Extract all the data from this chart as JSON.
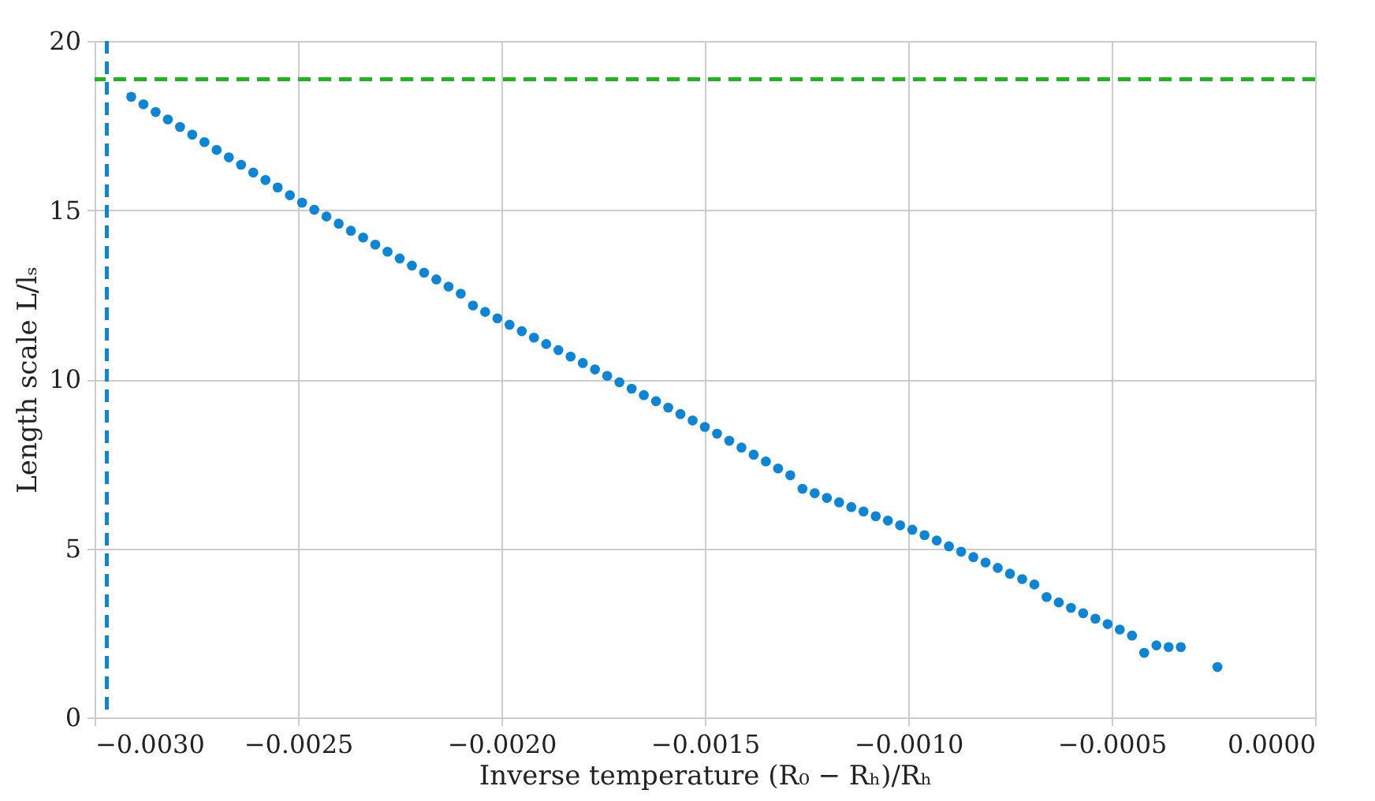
{
  "chart_data": {
    "type": "scatter",
    "xlabel": "Inverse temperature (R₀ − Rₕ)/Rₕ",
    "ylabel": "Length scale L/lₛ",
    "x": [
      -0.00291,
      -0.00288,
      -0.00285,
      -0.00282,
      -0.00279,
      -0.00276,
      -0.00273,
      -0.0027,
      -0.00267,
      -0.00264,
      -0.00261,
      -0.00258,
      -0.00255,
      -0.00252,
      -0.00249,
      -0.00246,
      -0.00243,
      -0.0024,
      -0.00237,
      -0.00234,
      -0.00231,
      -0.00228,
      -0.00225,
      -0.00222,
      -0.00219,
      -0.00216,
      -0.00213,
      -0.0021,
      -0.00207,
      -0.00204,
      -0.00201,
      -0.00198,
      -0.00195,
      -0.00192,
      -0.00189,
      -0.00186,
      -0.00183,
      -0.0018,
      -0.00177,
      -0.00174,
      -0.00171,
      -0.00168,
      -0.00165,
      -0.00162,
      -0.00159,
      -0.00156,
      -0.00153,
      -0.0015,
      -0.00147,
      -0.00144,
      -0.00141,
      -0.00138,
      -0.00135,
      -0.00132,
      -0.00129,
      -0.00126,
      -0.00123,
      -0.0012,
      -0.00117,
      -0.00114,
      -0.00111,
      -0.00108,
      -0.00105,
      -0.00102,
      -0.00099,
      -0.00096,
      -0.00093,
      -0.0009,
      -0.00087,
      -0.00084,
      -0.00081,
      -0.00078,
      -0.00075,
      -0.00072,
      -0.00069,
      -0.00066,
      -0.00063,
      -0.0006,
      -0.00057,
      -0.00054,
      -0.00051,
      -0.00048,
      -0.00045,
      -0.00042,
      -0.00039,
      -0.00036,
      -0.00033,
      -0.00024
    ],
    "series": [
      {
        "color": "#0b85d6",
        "values": [
          18.35,
          18.13,
          17.9,
          17.68,
          17.46,
          17.23,
          17.01,
          16.78,
          16.56,
          16.34,
          16.11,
          15.89,
          15.67,
          15.44,
          15.22,
          15.01,
          14.81,
          14.6,
          14.39,
          14.19,
          13.98,
          13.77,
          13.57,
          13.36,
          13.15,
          12.95,
          12.74,
          12.53,
          12.18,
          11.99,
          11.8,
          11.61,
          11.42,
          11.23,
          11.04,
          10.86,
          10.67,
          10.48,
          10.29,
          10.1,
          9.91,
          9.72,
          9.53,
          9.35,
          9.16,
          8.97,
          8.78,
          8.59,
          8.39,
          8.18,
          7.98,
          7.77,
          7.57,
          7.36,
          7.16,
          6.76,
          6.63,
          6.49,
          6.36,
          6.22,
          6.09,
          5.95,
          5.82,
          5.68,
          5.55,
          5.39,
          5.23,
          5.06,
          4.9,
          4.74,
          4.58,
          4.42,
          4.25,
          4.09,
          3.93,
          3.56,
          3.4,
          3.24,
          3.08,
          2.92,
          2.76,
          2.6,
          2.42,
          1.91,
          2.13,
          2.08,
          2.08,
          1.49
        ]
      }
    ],
    "xlim": [
      -0.003,
      0
    ],
    "xticks": [
      {
        "value": -0.003,
        "label": "−0.0030"
      },
      {
        "value": -0.0025,
        "label": "−0.0025"
      },
      {
        "value": -0.002,
        "label": "−0.0020"
      },
      {
        "value": -0.0015,
        "label": "−0.0015"
      },
      {
        "value": -0.001,
        "label": "−0.0010"
      },
      {
        "value": -0.0005,
        "label": "−0.0005"
      },
      {
        "value": 0,
        "label": "0.0000"
      }
    ],
    "ylim": [
      0,
      20
    ],
    "yticks": [
      0,
      5,
      10,
      15,
      20
    ],
    "ref_lines": [
      {
        "axis": "x",
        "value": -0.00297,
        "color": "#0b85d6",
        "line_style": "dashed"
      },
      {
        "axis": "y",
        "value": 18.87,
        "color": "#1fb51f",
        "line_style": "dashed"
      }
    ],
    "grid": true,
    "marker": "circle"
  }
}
